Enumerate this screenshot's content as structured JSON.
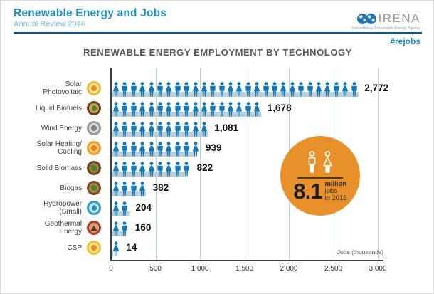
{
  "header": {
    "title": "Renewable Energy and Jobs",
    "subtitle": "Annual Review 2016",
    "logo_text": "IRENA",
    "logo_tagline": "International Renewable Energy Agency",
    "hashtag": "#rejobs"
  },
  "chart_title": "RENEWABLE ENERGY EMPLOYMENT BY TECHNOLOGY",
  "axis": {
    "label": "Jobs (thousands)",
    "ticks": [
      "0",
      "500",
      "1,000",
      "1,500",
      "2,000",
      "2,500",
      "3,000"
    ],
    "tick_values": [
      0,
      500,
      1000,
      1500,
      2000,
      2500,
      3000
    ],
    "max": 3000
  },
  "badge": {
    "big_number": "8.1",
    "line1": "million",
    "line2": "jobs",
    "line3": "in 2015"
  },
  "colors": {
    "person_blue": "#1478b4",
    "bar_fill": "#b9cfdb",
    "gridline": "#aed6e8",
    "axis": "#404040",
    "accent_orange": "#e8912b",
    "header_blue": "#1e8fc3",
    "header_light_blue": "#74bcdc",
    "navy_rule": "#17527e",
    "title_gray": "#58595b"
  },
  "chart_data": {
    "type": "bar",
    "title": "RENEWABLE ENERGY EMPLOYMENT BY TECHNOLOGY",
    "xlabel": "Jobs (thousands)",
    "ylabel": "",
    "xlim": [
      0,
      3000
    ],
    "grid": "vertical-lines-every-500",
    "legend": "none",
    "unit": "thousand jobs",
    "categories": [
      "Solar Photovoltaic",
      "Liquid Biofuels",
      "Wind Energy",
      "Solar Heating/ Cooling",
      "Solid Biomass",
      "Biogas",
      "Hydropower (Small)",
      "Geothermal Energy",
      "CSP"
    ],
    "values": [
      2772,
      1678,
      1081,
      939,
      822,
      382,
      204,
      160,
      14
    ],
    "annotation": "8.1 million jobs in 2015",
    "rows": [
      {
        "label_lines": [
          "Solar",
          "Photovoltaic"
        ],
        "value": 2772,
        "value_label": "2,772",
        "icons": 28,
        "icon": {
          "name": "solar-pv-icon",
          "outer": "#f0b732",
          "mid": "#fce9a4",
          "glyph": "sun",
          "glyph_color": "#ee8a1e"
        }
      },
      {
        "label_lines": [
          "Liquid Biofuels"
        ],
        "value": 1678,
        "value_label": "1,678",
        "icons": 17,
        "icon": {
          "name": "liquid-biofuels-icon",
          "outer": "#64421f",
          "mid": "#c8a35a",
          "glyph": "drop",
          "glyph_color": "#4e7d2b"
        }
      },
      {
        "label_lines": [
          "Wind Energy"
        ],
        "value": 1081,
        "value_label": "1,081",
        "icons": 11,
        "icon": {
          "name": "wind-energy-icon",
          "outer": "#97999b",
          "mid": "#d9dadb",
          "glyph": "turbine",
          "glyph_color": "#808486"
        }
      },
      {
        "label_lines": [
          "Solar Heating/",
          "Cooling"
        ],
        "value": 939,
        "value_label": "939",
        "icons": 10,
        "icon": {
          "name": "solar-heating-cooling-icon",
          "outer": "#ee9a24",
          "mid": "#fbd389",
          "glyph": "sun",
          "glyph_color": "#ed7d1b"
        }
      },
      {
        "label_lines": [
          "Solid Biomass"
        ],
        "value": 822,
        "value_label": "822",
        "icons": 9,
        "icon": {
          "name": "solid-biomass-icon",
          "outer": "#64421f",
          "mid": "#a57f3d",
          "glyph": "leaf",
          "glyph_color": "#4e7d2b"
        }
      },
      {
        "label_lines": [
          "Biogas"
        ],
        "value": 382,
        "value_label": "382",
        "icons": 4,
        "icon": {
          "name": "biogas-icon",
          "outer": "#6e4c26",
          "mid": "#b08948",
          "glyph": "leaf",
          "glyph_color": "#55822e"
        }
      },
      {
        "label_lines": [
          "Hydropower",
          "(Small)"
        ],
        "value": 204,
        "value_label": "204",
        "icons": 2,
        "icon": {
          "name": "hydropower-small-icon",
          "outer": "#2b9cd3",
          "mid": "#cde8dd",
          "glyph": "drop",
          "glyph_color": "#1e8ecf"
        }
      },
      {
        "label_lines": [
          "Geothermal",
          "Energy"
        ],
        "value": 160,
        "value_label": "160",
        "icons": 2,
        "icon": {
          "name": "geothermal-energy-icon",
          "outer": "#b23b21",
          "mid": "#d6a183",
          "glyph": "volcano",
          "glyph_color": "#5f3317"
        }
      },
      {
        "label_lines": [
          "CSP"
        ],
        "value": 14,
        "value_label": "14",
        "icons": 1,
        "icon": {
          "name": "csp-icon",
          "outer": "#f1c02d",
          "mid": "#f9e59a",
          "glyph": "sun",
          "glyph_color": "#ee8a1e"
        }
      }
    ]
  }
}
